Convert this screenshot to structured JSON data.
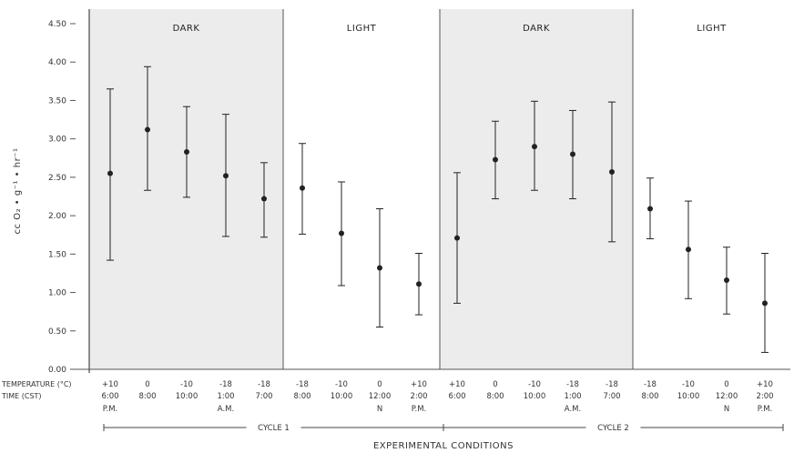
{
  "chart_data": {
    "type": "scatter",
    "ylabel": "cc O₂ • g⁻¹ • hr⁻¹",
    "xlabel": "EXPERIMENTAL CONDITIONS",
    "ylim": [
      0,
      4.5
    ],
    "yticks": [
      "0.00",
      "0.50",
      "1.00",
      "1.50",
      "2.00",
      "2.50",
      "3.00",
      "3.50",
      "4.00",
      "4.50"
    ],
    "grid": false,
    "row_headers": {
      "temperature": "TEMPERATURE (°C)",
      "time": "TIME (CST)"
    },
    "regions": [
      {
        "label": "DARK",
        "shaded": true,
        "from": 0,
        "to": 4
      },
      {
        "label": "LIGHT",
        "shaded": false,
        "from": 5,
        "to": 8
      },
      {
        "label": "DARK",
        "shaded": true,
        "from": 9,
        "to": 13
      },
      {
        "label": "LIGHT",
        "shaded": false,
        "from": 14,
        "to": 17
      }
    ],
    "cycles": [
      {
        "label": "CYCLE 1",
        "from": 0,
        "to": 8
      },
      {
        "label": "CYCLE 2",
        "from": 9,
        "to": 17
      }
    ],
    "points": [
      {
        "temp": "+10",
        "time": "6:00",
        "note": "P.M.",
        "mean": 2.55,
        "low": 1.42,
        "high": 3.65
      },
      {
        "temp": "0",
        "time": "8:00",
        "note": "",
        "mean": 3.12,
        "low": 2.33,
        "high": 3.94
      },
      {
        "temp": "-10",
        "time": "10:00",
        "note": "",
        "mean": 2.83,
        "low": 2.24,
        "high": 3.42
      },
      {
        "temp": "-18",
        "time": "1:00",
        "note": "A.M.",
        "mean": 2.52,
        "low": 1.73,
        "high": 3.32
      },
      {
        "temp": "-18",
        "time": "7:00",
        "note": "",
        "mean": 2.22,
        "low": 1.72,
        "high": 2.69
      },
      {
        "temp": "-18",
        "time": "8:00",
        "note": "",
        "mean": 2.36,
        "low": 1.76,
        "high": 2.94
      },
      {
        "temp": "-10",
        "time": "10:00",
        "note": "",
        "mean": 1.77,
        "low": 1.09,
        "high": 2.44
      },
      {
        "temp": "0",
        "time": "12:00",
        "note": "N",
        "mean": 1.32,
        "low": 0.55,
        "high": 2.09
      },
      {
        "temp": "+10",
        "time": "2:00",
        "note": "P.M.",
        "mean": 1.11,
        "low": 0.71,
        "high": 1.51
      },
      {
        "temp": "+10",
        "time": "6:00",
        "note": "",
        "mean": 1.71,
        "low": 0.86,
        "high": 2.56
      },
      {
        "temp": "0",
        "time": "8:00",
        "note": "",
        "mean": 2.73,
        "low": 2.22,
        "high": 3.23
      },
      {
        "temp": "-10",
        "time": "10:00",
        "note": "",
        "mean": 2.9,
        "low": 2.33,
        "high": 3.49
      },
      {
        "temp": "-18",
        "time": "1:00",
        "note": "A.M.",
        "mean": 2.8,
        "low": 2.22,
        "high": 3.37
      },
      {
        "temp": "-18",
        "time": "7:00",
        "note": "",
        "mean": 2.57,
        "low": 1.66,
        "high": 3.48
      },
      {
        "temp": "-18",
        "time": "8:00",
        "note": "",
        "mean": 2.09,
        "low": 1.7,
        "high": 2.49
      },
      {
        "temp": "-10",
        "time": "10:00",
        "note": "",
        "mean": 1.56,
        "low": 0.92,
        "high": 2.19
      },
      {
        "temp": "0",
        "time": "12:00",
        "note": "N",
        "mean": 1.16,
        "low": 0.72,
        "high": 1.59
      },
      {
        "temp": "+10",
        "time": "2:00",
        "note": "P.M.",
        "mean": 0.86,
        "low": 0.22,
        "high": 1.51
      }
    ]
  },
  "colors": {
    "dark_shade": "#ececec",
    "light_shade": "#ffffff",
    "ink": "#222222"
  }
}
